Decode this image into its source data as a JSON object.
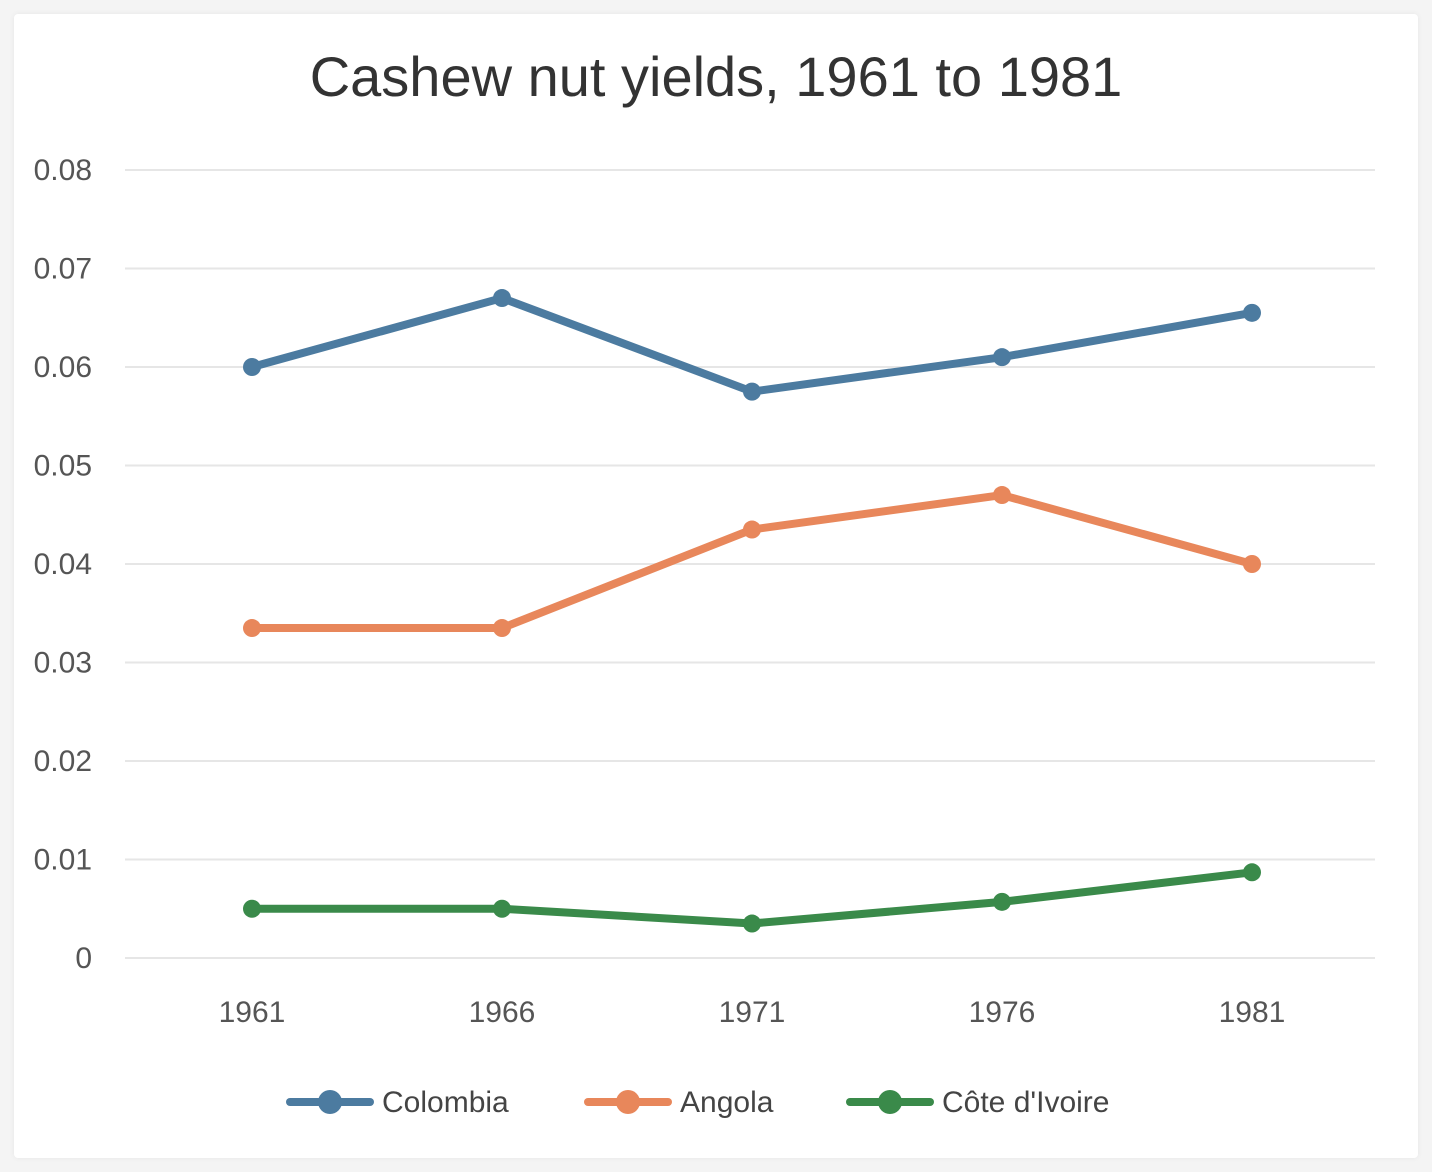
{
  "chart_data": {
    "type": "line",
    "title": "Cashew nut yields, 1961 to 1981",
    "xlabel": "",
    "ylabel": "",
    "x": [
      "1961",
      "1966",
      "1971",
      "1976",
      "1981"
    ],
    "ylim": [
      0,
      0.08
    ],
    "yticks": [
      0,
      0.01,
      0.02,
      0.03,
      0.04,
      0.05,
      0.06,
      0.07,
      0.08
    ],
    "ytick_labels": [
      "0",
      "0.01",
      "0.02",
      "0.03",
      "0.04",
      "0.05",
      "0.06",
      "0.07",
      "0.08"
    ],
    "grid": true,
    "legend_position": "bottom",
    "series": [
      {
        "name": "Colombia",
        "color": "#4c7ba0",
        "values": [
          0.06,
          0.067,
          0.0575,
          0.061,
          0.0655
        ]
      },
      {
        "name": "Angola",
        "color": "#e8875b",
        "values": [
          0.0335,
          0.0335,
          0.0435,
          0.047,
          0.04
        ]
      },
      {
        "name": "Côte d'Ivoire",
        "color": "#3a8a4a",
        "values": [
          0.005,
          0.005,
          0.0035,
          0.0057,
          0.0087
        ]
      }
    ]
  }
}
